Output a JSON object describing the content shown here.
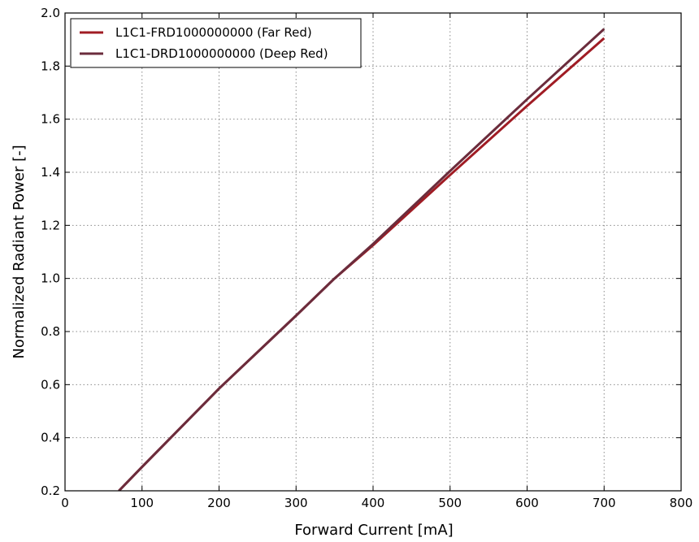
{
  "chart_data": {
    "type": "line",
    "xlabel": "Forward Current [mA]",
    "ylabel": "Normalized Radiant Power [-]",
    "xlim": [
      0,
      800
    ],
    "ylim": [
      0.2,
      2.0
    ],
    "xticks": [
      0,
      100,
      200,
      300,
      400,
      500,
      600,
      700,
      800
    ],
    "yticks": [
      0.2,
      0.4,
      0.6,
      0.8,
      1.0,
      1.2,
      1.4,
      1.6,
      1.8,
      2.0
    ],
    "xtick_labels": [
      "0",
      "100",
      "200",
      "300",
      "400",
      "500",
      "600",
      "700",
      "800"
    ],
    "ytick_labels": [
      "0.2",
      "0.4",
      "0.6",
      "0.8",
      "1.0",
      "1.2",
      "1.4",
      "1.6",
      "1.8",
      "2.0"
    ],
    "grid": true,
    "legend_position": "top-left",
    "series": [
      {
        "name": "L1C1-FRD1000000000 (Far Red)",
        "color": "#a01c24",
        "x": [
          70,
          100,
          200,
          300,
          350,
          400,
          500,
          600,
          700
        ],
        "y": [
          0.2,
          0.29,
          0.585,
          0.86,
          1.0,
          1.125,
          1.39,
          1.65,
          1.905
        ]
      },
      {
        "name": "L1C1-DRD1000000000 (Deep Red)",
        "color": "#6b2c3c",
        "x": [
          70,
          100,
          200,
          300,
          350,
          400,
          500,
          600,
          700
        ],
        "y": [
          0.2,
          0.29,
          0.585,
          0.86,
          1.0,
          1.13,
          1.405,
          1.675,
          1.94
        ]
      }
    ]
  }
}
